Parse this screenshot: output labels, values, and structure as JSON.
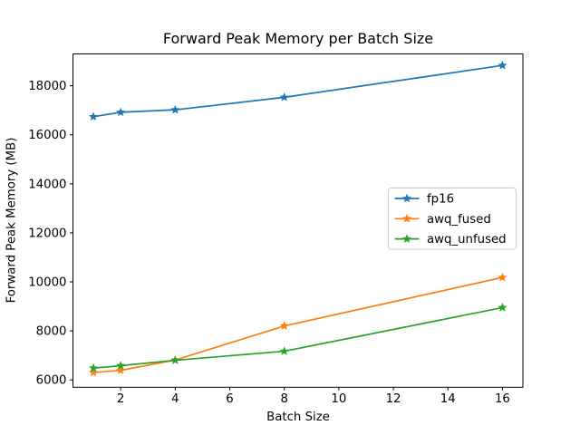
{
  "chart_data": {
    "type": "line",
    "title": "Forward Peak Memory per Batch Size",
    "xlabel": "Batch Size",
    "ylabel": "Forward Peak Memory (MB)",
    "x": [
      1,
      2,
      4,
      8,
      16
    ],
    "series": [
      {
        "name": "fp16",
        "color": "#1f77b4",
        "values": [
          16740,
          16920,
          17020,
          17530,
          18830
        ]
      },
      {
        "name": "awq_fused",
        "color": "#ff7f0e",
        "values": [
          6300,
          6390,
          6810,
          8200,
          10180
        ]
      },
      {
        "name": "awq_unfused",
        "color": "#2ca02c",
        "values": [
          6480,
          6580,
          6800,
          7170,
          8950
        ]
      }
    ],
    "marker": "star",
    "xlim": [
      0.25,
      16.75
    ],
    "ylim": [
      5700,
      19300
    ],
    "x_ticks": [
      2,
      4,
      6,
      8,
      10,
      12,
      14,
      16
    ],
    "y_ticks": [
      6000,
      8000,
      10000,
      12000,
      14000,
      16000,
      18000
    ],
    "grid": false,
    "legend": {
      "entries": [
        "fp16",
        "awq_fused",
        "awq_unfused"
      ],
      "position": "center-right",
      "border_color": "#cccccc",
      "background": "#ffffff"
    },
    "axis_color": "#000000",
    "background": "#ffffff"
  }
}
